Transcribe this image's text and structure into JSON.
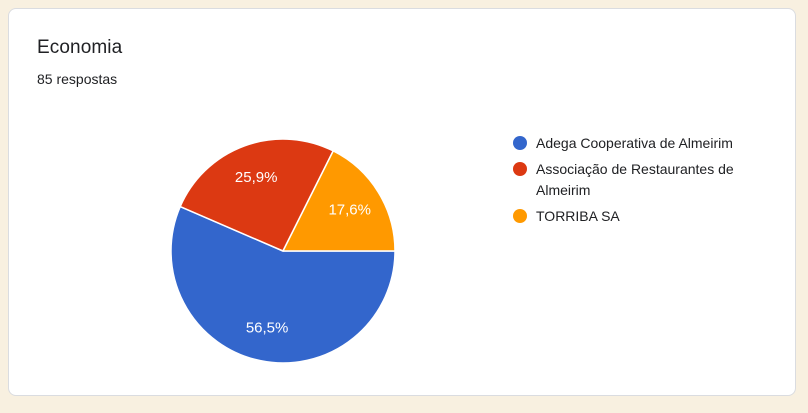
{
  "card": {
    "title": "Economia",
    "subtitle": "85 respostas"
  },
  "chart_data": {
    "type": "pie",
    "title": "Economia",
    "subtitle": "85 respostas",
    "categories": [
      "Adega Cooperativa de Almeirim",
      "Associação de Restaurantes de Almeirim",
      "TORRIBA SA"
    ],
    "values": [
      56.5,
      25.9,
      17.6
    ],
    "slice_labels": [
      "56,5%",
      "25,9%",
      "17,6%"
    ],
    "colors": [
      "#3366cc",
      "#dc3912",
      "#ff9900"
    ],
    "start_angle_deg": 90,
    "legend_position": "right",
    "label_color": "#ffffff",
    "label_radius_ratio": 0.7
  },
  "theme": {
    "page_background": "#f8f0e0",
    "card_background": "#ffffff",
    "card_border": "#dadce0",
    "text_color": "#202124"
  }
}
